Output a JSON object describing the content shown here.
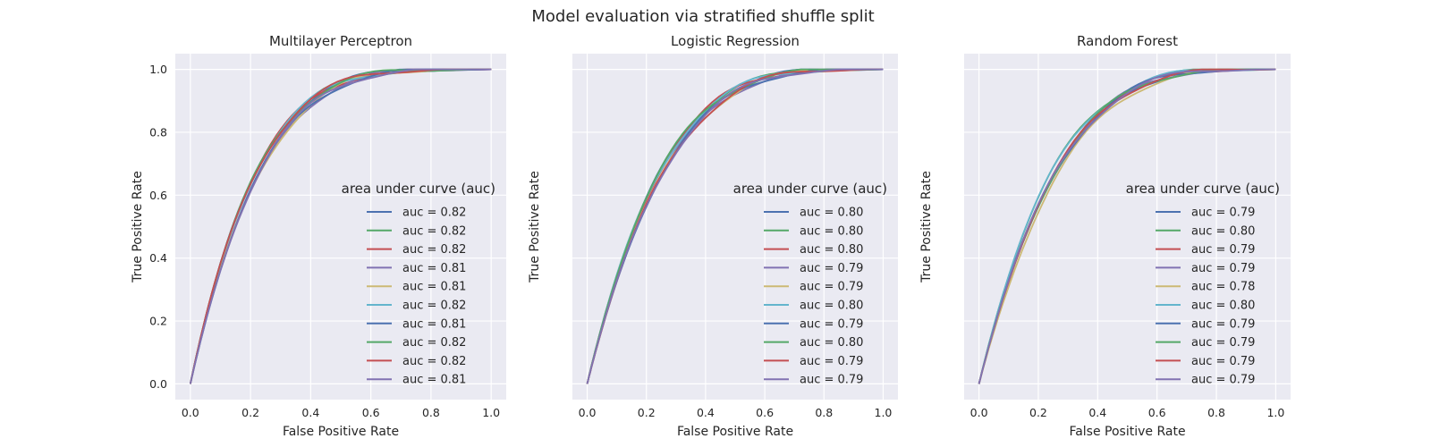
{
  "figure": {
    "suptitle": "Model evaluation via stratified shuffle split"
  },
  "colors": {
    "background": "#eaeaf2",
    "grid": "#ffffff",
    "series": [
      "#4c72b0",
      "#55a868",
      "#c44e52",
      "#8172b2",
      "#ccb974",
      "#64b5cd",
      "#4c72b0",
      "#55a868",
      "#c44e52",
      "#8172b2"
    ]
  },
  "chart_data": [
    {
      "type": "line",
      "title": "Multilayer Perceptron",
      "xlabel": "False Positive Rate",
      "ylabel": "True Positive Rate",
      "xlim": [
        -0.05,
        1.05
      ],
      "ylim": [
        -0.05,
        1.05
      ],
      "xticks": [
        "0.0",
        "0.2",
        "0.4",
        "0.6",
        "0.8",
        "1.0"
      ],
      "yticks": [
        "0.0",
        "0.2",
        "0.4",
        "0.6",
        "0.8",
        "1.0"
      ],
      "show_yticklabels": true,
      "grid": true,
      "legend": {
        "title": "area under curve (auc)",
        "placement": "lower-right"
      },
      "series": [
        {
          "name": "auc = 0.82",
          "auc": 0.82
        },
        {
          "name": "auc = 0.82",
          "auc": 0.82
        },
        {
          "name": "auc = 0.82",
          "auc": 0.82
        },
        {
          "name": "auc = 0.81",
          "auc": 0.81
        },
        {
          "name": "auc = 0.81",
          "auc": 0.81
        },
        {
          "name": "auc = 0.82",
          "auc": 0.82
        },
        {
          "name": "auc = 0.81",
          "auc": 0.81
        },
        {
          "name": "auc = 0.82",
          "auc": 0.82
        },
        {
          "name": "auc = 0.82",
          "auc": 0.82
        },
        {
          "name": "auc = 0.81",
          "auc": 0.81
        }
      ]
    },
    {
      "type": "line",
      "title": "Logistic Regression",
      "xlabel": "False Positive Rate",
      "ylabel": "True Positive Rate",
      "xlim": [
        -0.05,
        1.05
      ],
      "ylim": [
        -0.05,
        1.05
      ],
      "xticks": [
        "0.0",
        "0.2",
        "0.4",
        "0.6",
        "0.8",
        "1.0"
      ],
      "yticks": [
        "0.0",
        "0.2",
        "0.4",
        "0.6",
        "0.8",
        "1.0"
      ],
      "show_yticklabels": false,
      "grid": true,
      "legend": {
        "title": "area under curve (auc)",
        "placement": "lower-right"
      },
      "series": [
        {
          "name": "auc = 0.80",
          "auc": 0.8
        },
        {
          "name": "auc = 0.80",
          "auc": 0.8
        },
        {
          "name": "auc = 0.80",
          "auc": 0.8
        },
        {
          "name": "auc = 0.79",
          "auc": 0.79
        },
        {
          "name": "auc = 0.79",
          "auc": 0.79
        },
        {
          "name": "auc = 0.80",
          "auc": 0.8
        },
        {
          "name": "auc = 0.79",
          "auc": 0.79
        },
        {
          "name": "auc = 0.80",
          "auc": 0.8
        },
        {
          "name": "auc = 0.79",
          "auc": 0.79
        },
        {
          "name": "auc = 0.79",
          "auc": 0.79
        }
      ]
    },
    {
      "type": "line",
      "title": "Random Forest",
      "xlabel": "False Positive Rate",
      "ylabel": "True Positive Rate",
      "xlim": [
        -0.05,
        1.05
      ],
      "ylim": [
        -0.05,
        1.05
      ],
      "xticks": [
        "0.0",
        "0.2",
        "0.4",
        "0.6",
        "0.8",
        "1.0"
      ],
      "yticks": [
        "0.0",
        "0.2",
        "0.4",
        "0.6",
        "0.8",
        "1.0"
      ],
      "show_yticklabels": false,
      "grid": true,
      "legend": {
        "title": "area under curve (auc)",
        "placement": "lower-right"
      },
      "series": [
        {
          "name": "auc = 0.79",
          "auc": 0.79
        },
        {
          "name": "auc = 0.80",
          "auc": 0.8
        },
        {
          "name": "auc = 0.79",
          "auc": 0.79
        },
        {
          "name": "auc = 0.79",
          "auc": 0.79
        },
        {
          "name": "auc = 0.78",
          "auc": 0.78
        },
        {
          "name": "auc = 0.80",
          "auc": 0.8
        },
        {
          "name": "auc = 0.79",
          "auc": 0.79
        },
        {
          "name": "auc = 0.79",
          "auc": 0.79
        },
        {
          "name": "auc = 0.79",
          "auc": 0.79
        },
        {
          "name": "auc = 0.79",
          "auc": 0.79
        }
      ]
    }
  ]
}
